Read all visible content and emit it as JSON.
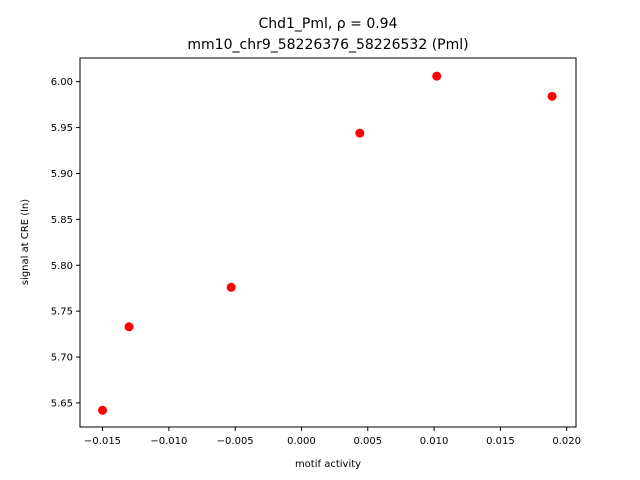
{
  "chart_data": {
    "type": "scatter",
    "title_line1": "Chd1_Pml, ρ = 0.94",
    "title_line2": "mm10_chr9_58226376_58226532 (Pml)",
    "xlabel": "motif activity",
    "ylabel": "signal at CRE (ln)",
    "xlim": [
      -0.0167,
      0.0207
    ],
    "ylim": [
      5.6238,
      6.0258
    ],
    "xticks": [
      -0.015,
      -0.01,
      -0.005,
      0.0,
      0.005,
      0.01,
      0.015,
      0.02
    ],
    "xtick_labels": [
      "−0.015",
      "−0.010",
      "−0.005",
      "0.000",
      "0.005",
      "0.010",
      "0.015",
      "0.020"
    ],
    "yticks": [
      5.65,
      5.7,
      5.75,
      5.8,
      5.85,
      5.9,
      5.95,
      6.0
    ],
    "ytick_labels": [
      "5.65",
      "5.70",
      "5.75",
      "5.80",
      "5.85",
      "5.90",
      "5.95",
      "6.00"
    ],
    "grid": false,
    "marker_color": "#ff0000",
    "points": [
      {
        "x": -0.015,
        "y": 5.642
      },
      {
        "x": -0.013,
        "y": 5.733
      },
      {
        "x": -0.0053,
        "y": 5.776
      },
      {
        "x": 0.0044,
        "y": 5.944
      },
      {
        "x": 0.0102,
        "y": 6.006
      },
      {
        "x": 0.0189,
        "y": 5.984
      }
    ]
  }
}
